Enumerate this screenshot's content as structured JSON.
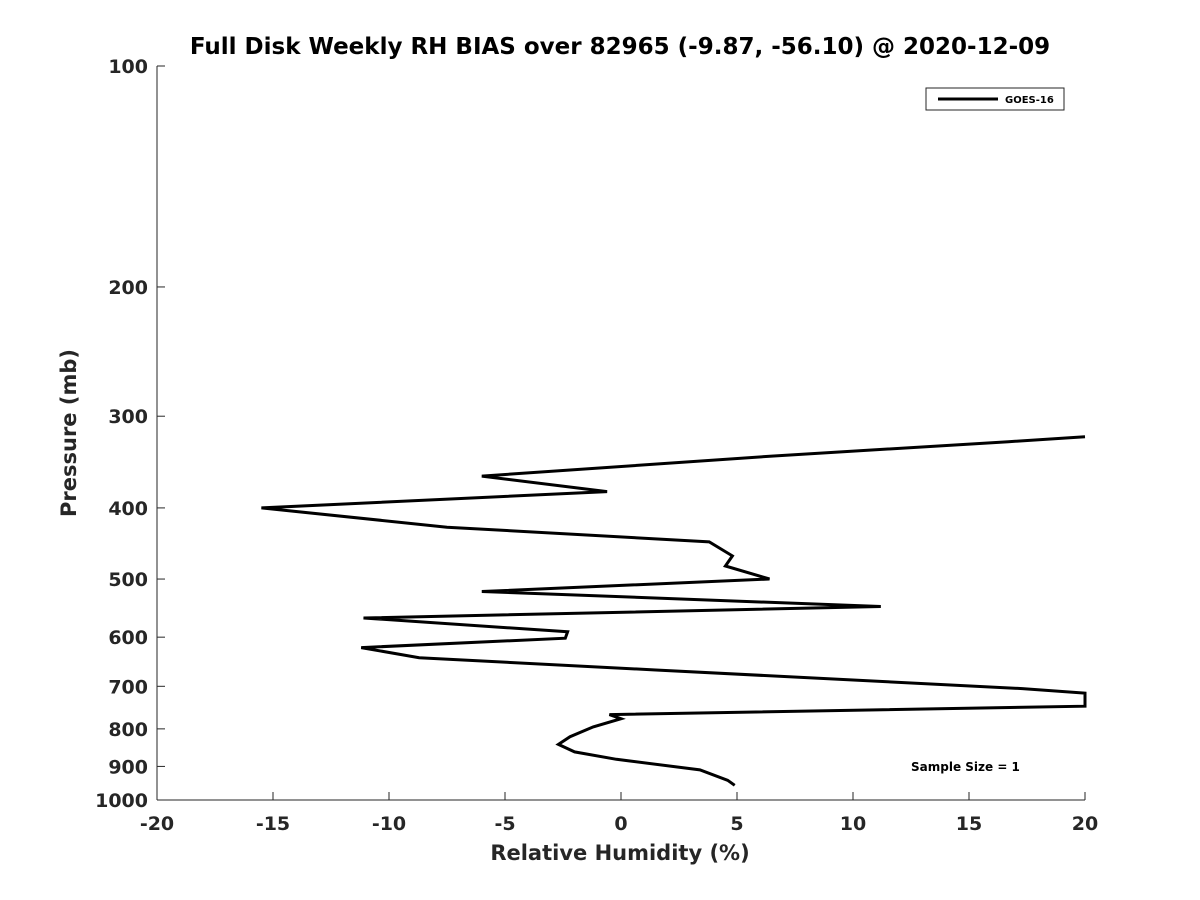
{
  "chart_data": {
    "type": "line",
    "title": "Full Disk Weekly RH BIAS over 82965 (-9.87, -56.10) @ 2020-12-09",
    "xlabel": "Relative Humidity (%)",
    "ylabel": "Pressure (mb)",
    "xlim": [
      -20,
      20
    ],
    "ylim": [
      100,
      1000
    ],
    "y_scale": "log",
    "y_reversed": true,
    "grid": false,
    "legend_position": "top-right",
    "x_ticks": [
      "-20",
      "-15",
      "-10",
      "-5",
      "0",
      "5",
      "10",
      "15",
      "20"
    ],
    "y_ticks": [
      "100",
      "200",
      "300",
      "400",
      "500",
      "600",
      "700",
      "800",
      "900",
      "1000"
    ],
    "series": [
      {
        "name": "GOES-16",
        "color": "#000000",
        "points": [
          {
            "x": 20.0,
            "y": 320
          },
          {
            "x": 16.7,
            "y": 325
          },
          {
            "x": 6.5,
            "y": 340
          },
          {
            "x": -6.0,
            "y": 362
          },
          {
            "x": -0.6,
            "y": 380
          },
          {
            "x": -15.5,
            "y": 400
          },
          {
            "x": -7.5,
            "y": 425
          },
          {
            "x": 3.8,
            "y": 445
          },
          {
            "x": 4.8,
            "y": 465
          },
          {
            "x": 4.5,
            "y": 480
          },
          {
            "x": 6.4,
            "y": 500
          },
          {
            "x": -6.0,
            "y": 520
          },
          {
            "x": 11.2,
            "y": 545
          },
          {
            "x": -11.1,
            "y": 565
          },
          {
            "x": -2.3,
            "y": 590
          },
          {
            "x": -2.4,
            "y": 602
          },
          {
            "x": -11.2,
            "y": 620
          },
          {
            "x": -8.7,
            "y": 640
          },
          {
            "x": 1.5,
            "y": 665
          },
          {
            "x": 17.3,
            "y": 705
          },
          {
            "x": 20.0,
            "y": 715
          },
          {
            "x": 20.0,
            "y": 745
          },
          {
            "x": -0.5,
            "y": 765
          },
          {
            "x": 0.0,
            "y": 775
          },
          {
            "x": -1.2,
            "y": 795
          },
          {
            "x": -2.2,
            "y": 820
          },
          {
            "x": -2.7,
            "y": 840
          },
          {
            "x": -2.0,
            "y": 860
          },
          {
            "x": -0.2,
            "y": 880
          },
          {
            "x": 3.4,
            "y": 910
          },
          {
            "x": 4.6,
            "y": 940
          },
          {
            "x": 4.9,
            "y": 955
          }
        ]
      }
    ],
    "annotations": [
      "Sample Size = 1"
    ]
  }
}
